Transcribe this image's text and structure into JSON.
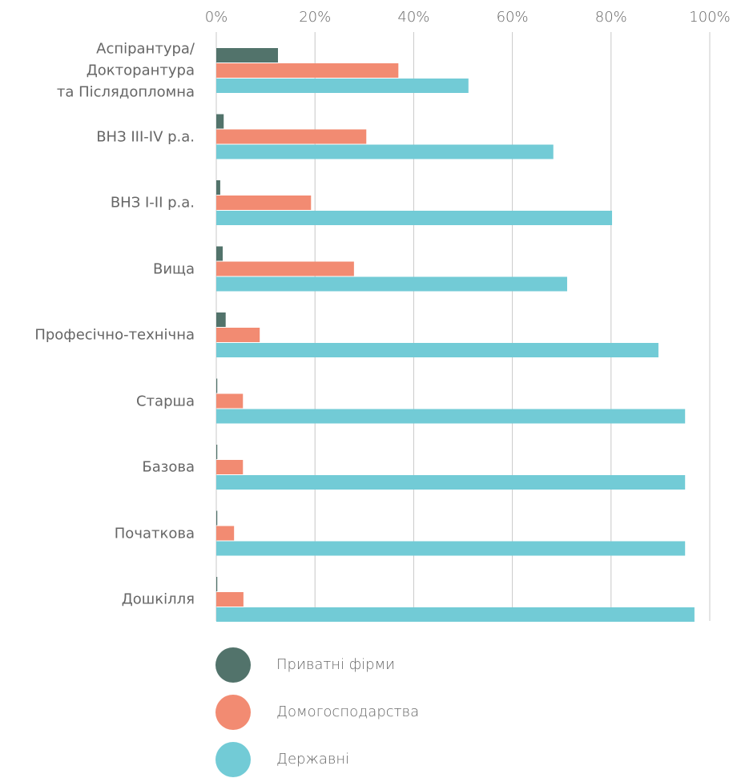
{
  "chart_data": {
    "type": "bar",
    "orientation": "horizontal",
    "categories": [
      "Аспірантура/\nДокторантура\nта Післядопломна",
      "ВНЗ III-IV р.а.",
      "ВНЗ I-II р.а.",
      "Вища",
      "Професічно-технічна",
      "Старша",
      "Базова",
      "Початкова",
      "Дошкілля"
    ],
    "series": [
      {
        "name": "Приватні фірми",
        "color": "#52736b",
        "values": [
          12.5,
          1.5,
          0.8,
          1.3,
          1.9,
          0.2,
          0.2,
          0.2,
          0.2
        ]
      },
      {
        "name": "Домогосподарства",
        "color": "#f28b72",
        "values": [
          36.9,
          30.4,
          19.2,
          27.9,
          8.8,
          5.4,
          5.4,
          3.6,
          5.5
        ]
      },
      {
        "name": "Державні",
        "color": "#72cbd6",
        "values": [
          51.1,
          68.3,
          80.2,
          71.1,
          89.6,
          95,
          95,
          95,
          96.9
        ]
      }
    ],
    "xlim": [
      0,
      100
    ],
    "xticks": [
      {
        "value": 0,
        "label": "0%"
      },
      {
        "value": 20,
        "label": "20%"
      },
      {
        "value": 40,
        "label": "40%"
      },
      {
        "value": 60,
        "label": "60%"
      },
      {
        "value": 80,
        "label": "80%"
      },
      {
        "value": 100,
        "label": "100%"
      }
    ],
    "grid": true,
    "legend": "bottom"
  }
}
